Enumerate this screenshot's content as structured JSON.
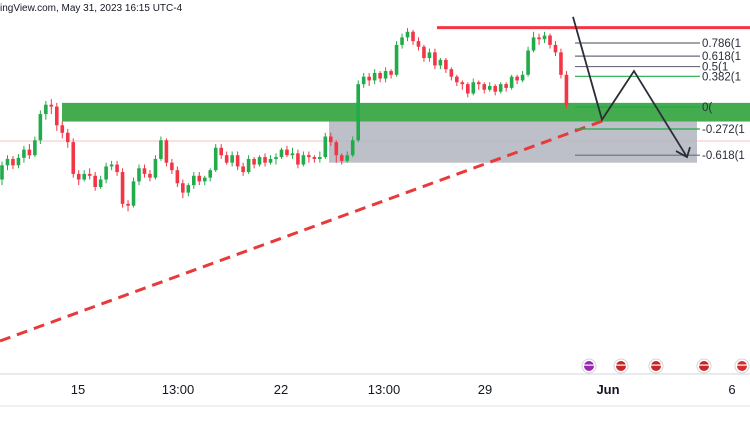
{
  "header": {
    "text": "ingView.com, May 31, 2023 16:15 UTC-4"
  },
  "colors": {
    "up": "#22ab4a",
    "down": "#f23645",
    "support_zone": "#3aa845",
    "gray_zone": "#b2b5be",
    "resistance": "#f23645",
    "trendline": "#e83a3a",
    "projection": "#2a2e39",
    "fib_line": "#6a6d78",
    "fib_green": "#22ab4a"
  },
  "chart_data": {
    "type": "candlestick",
    "title": "",
    "xlabel": "",
    "ylabel": "",
    "ylim": [
      0,
      100
    ],
    "x_tick_labels": [
      "15",
      "13:00",
      "22",
      "13:00",
      "29",
      "Jun",
      "6"
    ],
    "fib_levels": [
      {
        "label": "0.786(1",
        "y": 88.5
      },
      {
        "label": "0.618(1",
        "y": 85.0
      },
      {
        "label": "0.5(1",
        "y": 82.2
      },
      {
        "label": "0.382(1",
        "y": 79.6
      },
      {
        "label": "0(",
        "y": 71.4
      },
      {
        "label": "-0.272(1",
        "y": 65.5
      },
      {
        "label": "-0.618(1",
        "y": 58.5
      }
    ],
    "zones": [
      {
        "name": "support",
        "y_top": 72.5,
        "y_bottom": 67.5
      },
      {
        "name": "gray",
        "y_top": 67.5,
        "y_bottom": 56.5
      }
    ],
    "resistance_level": 92.6,
    "candles": [
      [
        52.0,
        55.8,
        50.5,
        56.8
      ],
      [
        55.8,
        57.5,
        54.5,
        58.5
      ],
      [
        57.5,
        55.8,
        54.8,
        58.3
      ],
      [
        55.8,
        57.8,
        55.0,
        58.8
      ],
      [
        57.8,
        60.0,
        56.5,
        61.0
      ],
      [
        60.0,
        58.5,
        57.5,
        61.5
      ],
      [
        58.5,
        62.5,
        58.0,
        63.5
      ],
      [
        62.5,
        69.5,
        61.5,
        70.5
      ],
      [
        69.5,
        72.0,
        68.0,
        73.0
      ],
      [
        72.0,
        71.5,
        69.5,
        73.5
      ],
      [
        71.5,
        66.5,
        65.0,
        72.5
      ],
      [
        66.5,
        64.5,
        63.0,
        67.5
      ],
      [
        64.5,
        62.0,
        60.5,
        65.5
      ],
      [
        62.0,
        53.5,
        52.5,
        63.0
      ],
      [
        53.5,
        52.0,
        50.5,
        54.5
      ],
      [
        52.0,
        53.5,
        51.5,
        54.5
      ],
      [
        53.5,
        53.0,
        52.0,
        55.0
      ],
      [
        53.0,
        50.0,
        49.0,
        54.0
      ],
      [
        50.0,
        52.0,
        49.5,
        53.0
      ],
      [
        52.0,
        55.5,
        51.0,
        56.5
      ],
      [
        55.5,
        56.0,
        54.5,
        57.0
      ],
      [
        56.0,
        54.0,
        53.0,
        57.0
      ],
      [
        54.0,
        45.5,
        44.5,
        55.0
      ],
      [
        45.5,
        45.0,
        43.5,
        46.5
      ],
      [
        45.0,
        51.5,
        44.5,
        52.5
      ],
      [
        51.5,
        55.0,
        50.5,
        56.0
      ],
      [
        55.0,
        53.5,
        52.5,
        56.0
      ],
      [
        53.5,
        52.5,
        51.5,
        54.5
      ],
      [
        52.5,
        57.5,
        52.0,
        58.5
      ],
      [
        57.5,
        62.5,
        57.0,
        63.5
      ],
      [
        62.5,
        56.5,
        55.5,
        63.0
      ],
      [
        56.5,
        54.5,
        53.5,
        57.5
      ],
      [
        54.5,
        51.0,
        50.0,
        55.5
      ],
      [
        51.0,
        48.5,
        47.0,
        52.0
      ],
      [
        48.5,
        50.5,
        47.5,
        51.0
      ],
      [
        50.5,
        53.0,
        49.5,
        54.0
      ],
      [
        53.0,
        51.5,
        50.5,
        54.0
      ],
      [
        51.5,
        52.5,
        50.5,
        53.0
      ],
      [
        52.5,
        54.5,
        51.5,
        55.0
      ],
      [
        54.5,
        60.5,
        54.0,
        61.5
      ],
      [
        60.5,
        58.5,
        57.5,
        61.5
      ],
      [
        58.5,
        56.5,
        56.0,
        59.5
      ],
      [
        56.5,
        58.5,
        55.5,
        59.5
      ],
      [
        58.5,
        55.5,
        54.5,
        59.5
      ],
      [
        55.5,
        54.0,
        53.0,
        56.5
      ],
      [
        54.0,
        57.5,
        53.5,
        58.5
      ],
      [
        57.5,
        56.0,
        55.0,
        58.0
      ],
      [
        56.0,
        58.0,
        55.5,
        58.5
      ],
      [
        58.0,
        56.5,
        55.5,
        59.0
      ],
      [
        56.5,
        57.5,
        56.0,
        58.5
      ],
      [
        57.5,
        58.0,
        56.0,
        59.0
      ],
      [
        58.0,
        60.0,
        57.5,
        60.5
      ],
      [
        60.0,
        58.5,
        58.0,
        61.0
      ],
      [
        58.5,
        59.0,
        57.5,
        60.5
      ],
      [
        59.0,
        56.0,
        55.0,
        60.0
      ],
      [
        56.0,
        58.5,
        55.5,
        59.5
      ],
      [
        58.5,
        58.0,
        56.5,
        59.5
      ],
      [
        58.0,
        57.5,
        56.5,
        58.5
      ],
      [
        57.5,
        58.0,
        56.5,
        59.5
      ],
      [
        58.0,
        63.5,
        57.5,
        64.5
      ],
      [
        63.5,
        62.0,
        61.0,
        64.5
      ],
      [
        62.0,
        58.5,
        56.5,
        62.5
      ],
      [
        58.5,
        57.0,
        56.0,
        59.0
      ],
      [
        57.0,
        58.5,
        56.5,
        59.5
      ],
      [
        58.5,
        62.5,
        58.0,
        63.5
      ],
      [
        62.5,
        77.5,
        62.0,
        78.5
      ],
      [
        77.5,
        79.5,
        76.5,
        80.5
      ],
      [
        79.5,
        78.5,
        77.0,
        80.5
      ],
      [
        78.5,
        80.5,
        77.5,
        81.5
      ],
      [
        80.5,
        79.0,
        78.0,
        81.0
      ],
      [
        79.0,
        81.0,
        78.0,
        82.0
      ],
      [
        81.0,
        80.0,
        79.0,
        81.5
      ],
      [
        80.0,
        88.0,
        79.5,
        89.0
      ],
      [
        88.0,
        90.0,
        87.0,
        91.0
      ],
      [
        90.0,
        91.5,
        89.0,
        92.5
      ],
      [
        91.5,
        89.0,
        88.0,
        92.0
      ],
      [
        89.0,
        87.5,
        86.5,
        90.0
      ],
      [
        87.5,
        84.5,
        83.5,
        88.0
      ],
      [
        84.5,
        86.0,
        83.5,
        87.0
      ],
      [
        86.0,
        82.5,
        81.5,
        87.0
      ],
      [
        82.5,
        84.0,
        81.5,
        84.5
      ],
      [
        84.0,
        81.5,
        80.5,
        84.5
      ],
      [
        81.5,
        79.5,
        78.5,
        82.0
      ],
      [
        79.5,
        78.0,
        77.0,
        80.0
      ],
      [
        78.0,
        77.5,
        76.0,
        78.5
      ],
      [
        77.5,
        75.0,
        74.0,
        78.0
      ],
      [
        75.0,
        78.0,
        74.5,
        79.0
      ],
      [
        78.0,
        77.5,
        76.0,
        78.5
      ],
      [
        77.5,
        76.0,
        75.0,
        78.0
      ],
      [
        76.0,
        77.0,
        75.5,
        78.0
      ],
      [
        77.0,
        75.5,
        74.5,
        77.5
      ],
      [
        75.5,
        77.5,
        75.0,
        78.0
      ],
      [
        77.5,
        76.5,
        75.5,
        78.0
      ],
      [
        76.5,
        79.5,
        76.0,
        80.0
      ],
      [
        79.5,
        78.5,
        77.5,
        80.0
      ],
      [
        78.5,
        80.0,
        78.0,
        81.0
      ],
      [
        80.0,
        86.5,
        79.5,
        87.5
      ],
      [
        86.5,
        90.0,
        86.0,
        91.5
      ],
      [
        90.0,
        89.5,
        88.0,
        91.0
      ],
      [
        89.5,
        90.5,
        88.5,
        91.5
      ],
      [
        90.5,
        88.0,
        87.0,
        91.0
      ],
      [
        88.0,
        86.0,
        85.0,
        89.0
      ],
      [
        86.0,
        80.0,
        79.0,
        87.0
      ],
      [
        80.0,
        72.0,
        71.0,
        81.0
      ]
    ],
    "markers": [
      {
        "name": "lightning-event-icon",
        "x": 589,
        "color": "#9c27b0"
      },
      {
        "name": "us-flag-icon",
        "x": 621,
        "color": "#c62828"
      },
      {
        "name": "us-flag-icon",
        "x": 656,
        "color": "#c62828"
      },
      {
        "name": "us-flag-icon",
        "x": 704,
        "color": "#c62828"
      },
      {
        "name": "ca-flag-icon",
        "x": 742,
        "color": "#d32f2f"
      }
    ]
  }
}
